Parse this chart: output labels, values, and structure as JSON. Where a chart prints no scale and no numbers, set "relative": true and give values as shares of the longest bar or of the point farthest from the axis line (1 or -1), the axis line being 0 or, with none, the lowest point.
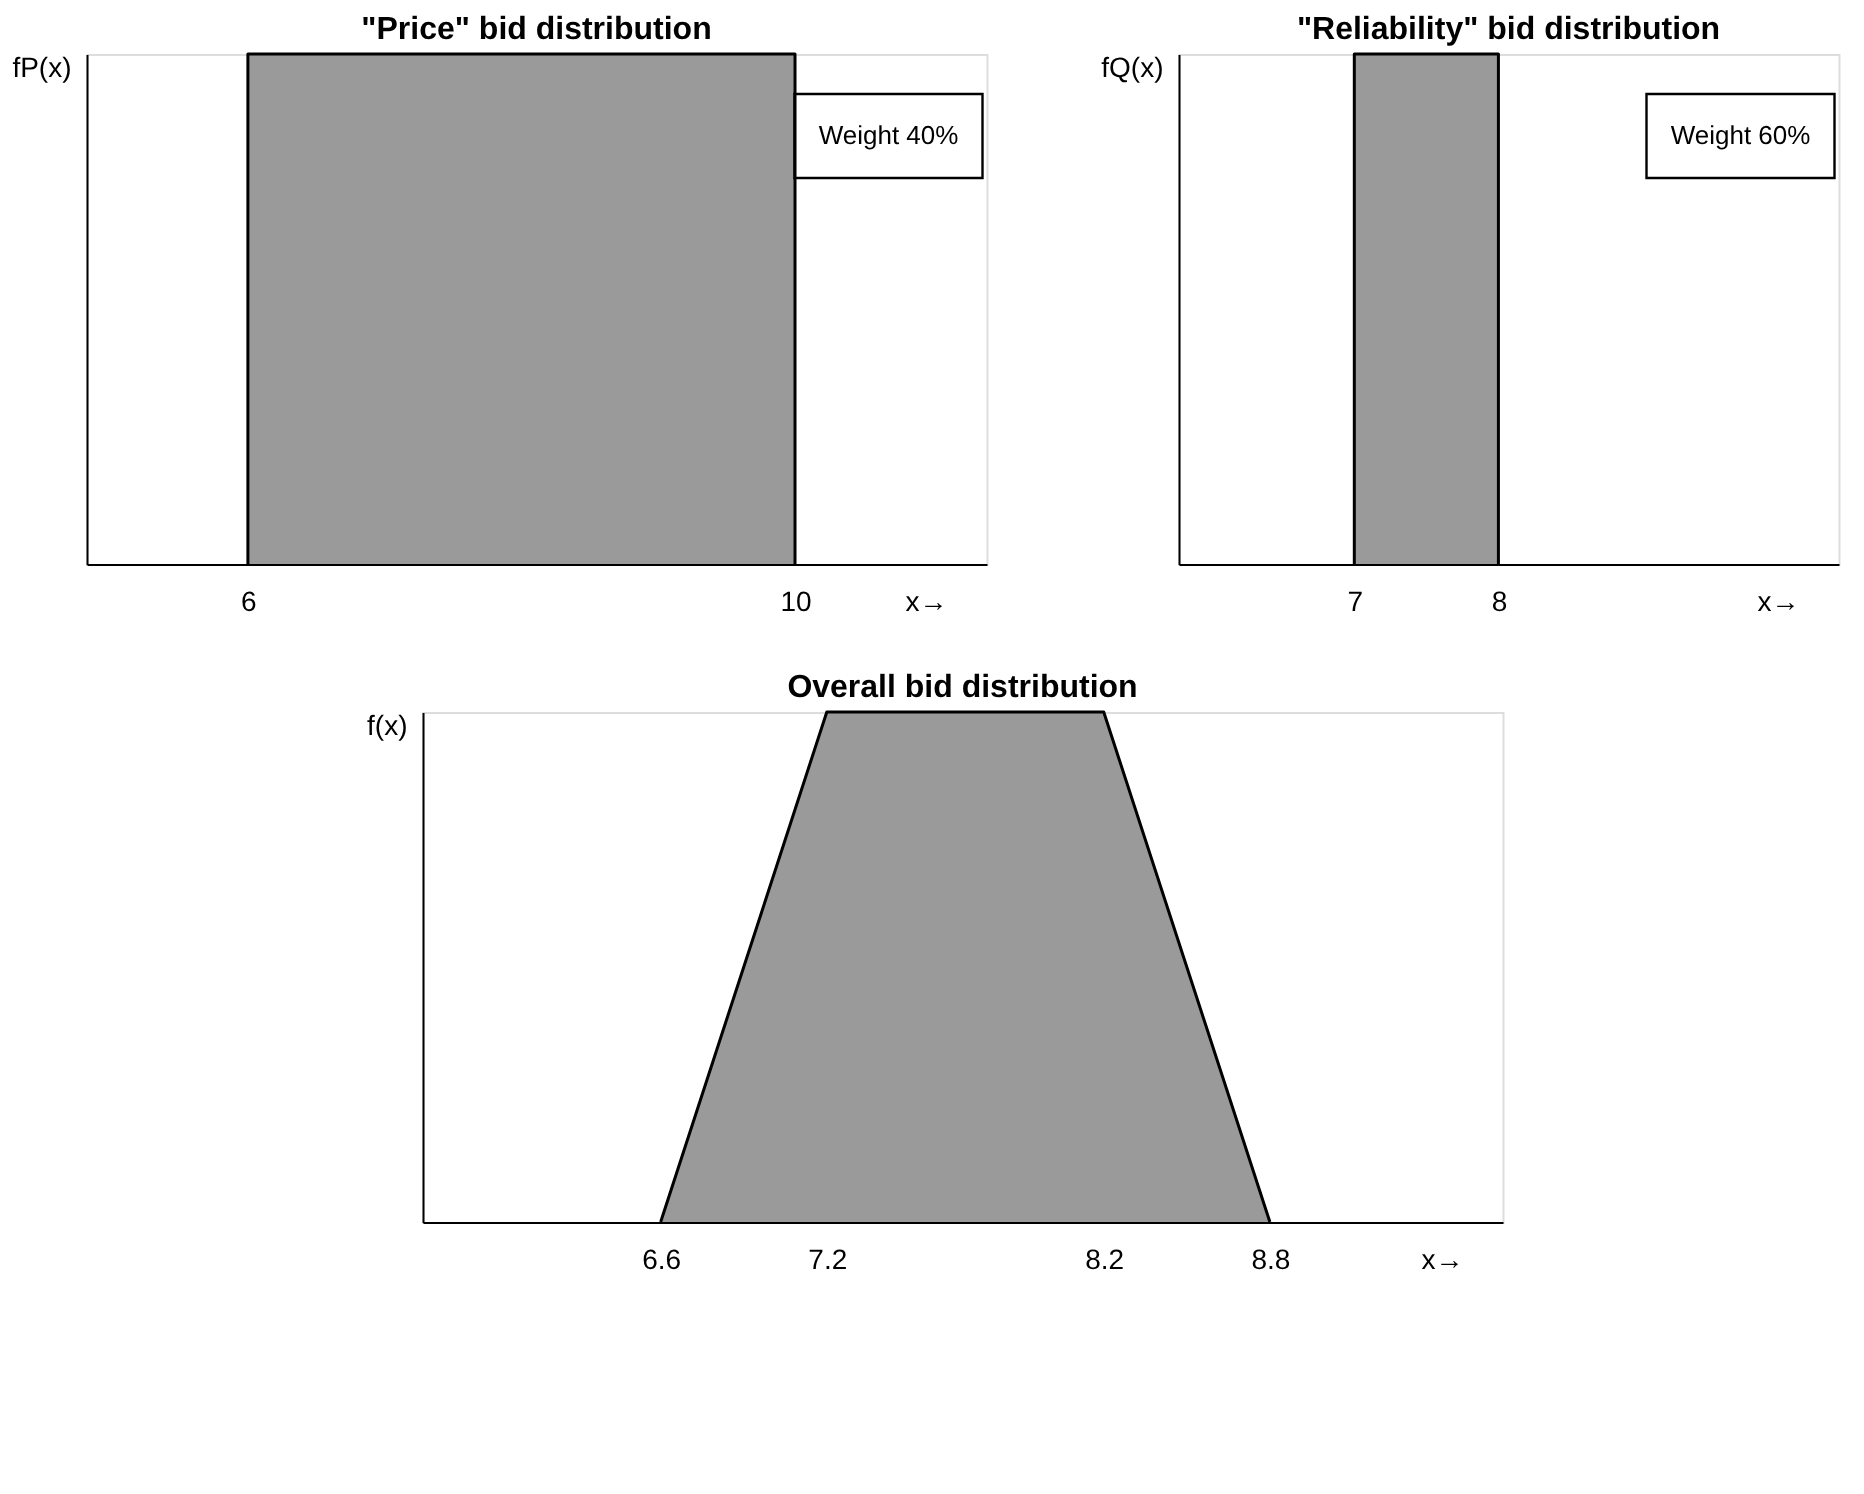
{
  "chart_data": [
    {
      "type": "area",
      "title": "\"Price\" bid distribution",
      "ylabel": "fP(x)",
      "xlabel": "x→",
      "relative": true,
      "xlim": [
        4.82,
        11.4
      ],
      "xticks": [
        6,
        10
      ],
      "tick_labels": "x",
      "grid": false,
      "annotations": [
        "Weight 40%"
      ],
      "series": [
        {
          "color": "#9a9a9a",
          "x": [
            6,
            6,
            10,
            10
          ],
          "values": [
            0,
            1,
            1,
            0
          ]
        }
      ]
    },
    {
      "type": "area",
      "title": "\"Reliability\" bid distribution",
      "ylabel": "fQ(x)",
      "xlabel": "x→",
      "relative": true,
      "xlim": [
        5.78,
        10.36
      ],
      "xticks": [
        7,
        8
      ],
      "tick_labels": "x",
      "grid": false,
      "annotations": [
        "Weight 60%"
      ],
      "series": [
        {
          "color": "#9a9a9a",
          "x": [
            7,
            7,
            8,
            8
          ],
          "values": [
            0,
            1,
            1,
            0
          ]
        }
      ]
    },
    {
      "type": "area",
      "title": "Overall bid distribution",
      "ylabel": "f(x)",
      "xlabel": "x→",
      "relative": true,
      "xlim": [
        5.74,
        9.64
      ],
      "xticks": [
        6.6,
        7.2,
        8.2,
        8.8
      ],
      "tick_labels": "x",
      "grid": false,
      "series": [
        {
          "color": "#9a9a9a",
          "x": [
            6.6,
            7.2,
            8.2,
            8.8
          ],
          "values": [
            0,
            1,
            1,
            0
          ]
        }
      ]
    }
  ]
}
